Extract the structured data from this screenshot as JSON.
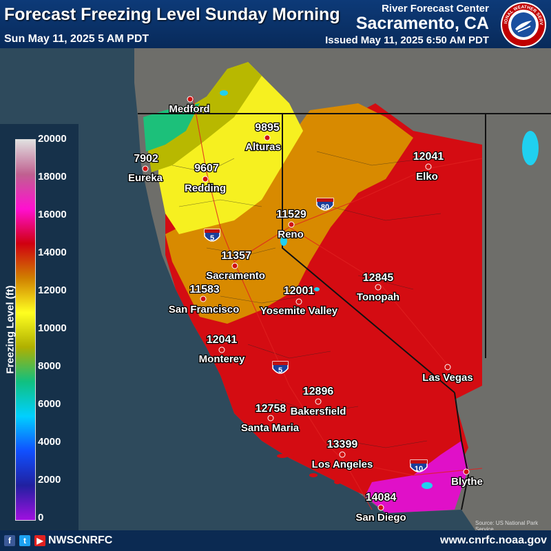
{
  "header": {
    "title": "Forecast Freezing Level Sunday Morning",
    "valid_time": "Sun May 11, 2025 5 AM PDT",
    "agency": "River Forecast Center",
    "office_city": "Sacramento, CA",
    "issued": "Issued May 11, 2025 6:50 AM PDT",
    "logo_text": "NATIONAL WEATHER SERVICE"
  },
  "legend": {
    "label": "Freezing Level (ft)",
    "ticks": [
      "20000",
      "18000",
      "16000",
      "14000",
      "12000",
      "10000",
      "8000",
      "6000",
      "4000",
      "2000",
      "0"
    ],
    "colors": [
      "#a010e0",
      "#2020a0",
      "#1050ff",
      "#00d0ff",
      "#10c080",
      "#b0b000",
      "#ffff20",
      "#d08000",
      "#d00010",
      "#ff10d0",
      "#c06090",
      "#e0e0e0"
    ]
  },
  "cities": [
    {
      "name": "Medford",
      "value": ""
    },
    {
      "name": "Alturas",
      "value": "9895"
    },
    {
      "name": "Eureka",
      "value": "7902"
    },
    {
      "name": "Redding",
      "value": "9607"
    },
    {
      "name": "Elko",
      "value": "12041"
    },
    {
      "name": "Reno",
      "value": "11529"
    },
    {
      "name": "Sacramento",
      "value": "11357"
    },
    {
      "name": "San Francisco",
      "value": "11583"
    },
    {
      "name": "Yosemite Valley",
      "value": "12001"
    },
    {
      "name": "Tonopah",
      "value": "12845"
    },
    {
      "name": "Monterey",
      "value": "12041"
    },
    {
      "name": "Las Vegas",
      "value": ""
    },
    {
      "name": "Bakersfield",
      "value": "12896"
    },
    {
      "name": "Santa Maria",
      "value": "12758"
    },
    {
      "name": "Los Angeles",
      "value": "13399"
    },
    {
      "name": "Blythe",
      "value": ""
    },
    {
      "name": "San Diego",
      "value": "14084"
    }
  ],
  "highways": [
    "5",
    "80",
    "5",
    "10"
  ],
  "source_credit": "Source: US National Park Service",
  "footer": {
    "handle": "NWSCNRFC",
    "website": "www.cnrfc.noaa.gov"
  }
}
